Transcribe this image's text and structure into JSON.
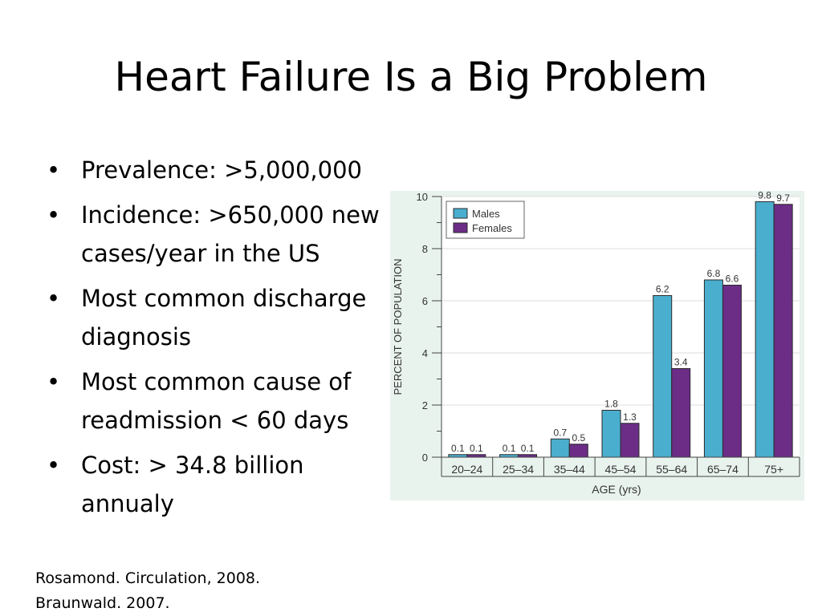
{
  "slide": {
    "title": "Heart Failure Is a Big Problem",
    "bullets": [
      "Prevalence: >5,000,000",
      "Incidence: >650,000 new cases/year in the US",
      "Most common discharge diagnosis",
      "Most common cause of readmission < 60 days",
      "Cost: > 34.8 billion annualy"
    ],
    "references": [
      "Rosamond. Circulation, 2008.",
      "Braunwald. 2007."
    ]
  },
  "colors": {
    "males": "#4aaecf",
    "females": "#6b2d86",
    "chart_background": "#e8f3ee"
  },
  "chart_data": {
    "type": "bar",
    "title": "",
    "xlabel": "AGE (yrs)",
    "ylabel": "PERCENT OF POPULATION",
    "ylim": [
      0,
      10
    ],
    "yticks": [
      0,
      2,
      4,
      6,
      8,
      10
    ],
    "categories": [
      "20–24",
      "25–34",
      "35–44",
      "45–54",
      "55–64",
      "65–74",
      "75+"
    ],
    "series": [
      {
        "name": "Males",
        "values": [
          0.1,
          0.1,
          0.7,
          1.8,
          6.2,
          6.8,
          9.8
        ]
      },
      {
        "name": "Females",
        "values": [
          0.1,
          0.1,
          0.5,
          1.3,
          3.4,
          6.6,
          9.7
        ]
      }
    ],
    "legend": "top-left",
    "grid": true
  }
}
